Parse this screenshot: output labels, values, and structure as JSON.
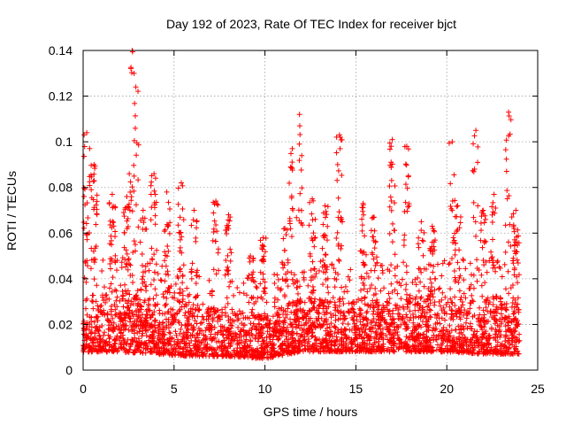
{
  "chart_data": {
    "type": "scatter",
    "title": "Day 192 of 2023, Rate Of TEC Index for receiver bjct",
    "xlabel": "GPS time / hours",
    "ylabel": "ROTI / TECUs",
    "xlim": [
      0,
      25
    ],
    "ylim": [
      0,
      0.14
    ],
    "x_ticks": [
      0,
      5,
      10,
      15,
      20,
      25
    ],
    "y_ticks": [
      0,
      0.02,
      0.04,
      0.06,
      0.08,
      0.1,
      0.12,
      0.14
    ],
    "x_tick_labels": [
      "0",
      "5",
      "10",
      "15",
      "20",
      "25"
    ],
    "y_tick_labels": [
      "0",
      "0.02",
      "0.04",
      "0.06",
      "0.08",
      "0.1",
      "0.12",
      "0.14"
    ],
    "grid": true,
    "marker": "+",
    "color": "#ff0000",
    "time_span_hours": [
      0,
      24
    ],
    "sampling": "dense per-satellite samples, ~0.5 min cadence",
    "baseline_envelope": [
      {
        "x": 0,
        "low": 0.008,
        "high": 0.032
      },
      {
        "x": 2,
        "low": 0.008,
        "high": 0.035
      },
      {
        "x": 4,
        "low": 0.007,
        "high": 0.03
      },
      {
        "x": 6,
        "low": 0.006,
        "high": 0.028
      },
      {
        "x": 8,
        "low": 0.006,
        "high": 0.027
      },
      {
        "x": 10,
        "low": 0.005,
        "high": 0.024
      },
      {
        "x": 12,
        "low": 0.008,
        "high": 0.032
      },
      {
        "x": 14,
        "low": 0.008,
        "high": 0.032
      },
      {
        "x": 16,
        "low": 0.008,
        "high": 0.03
      },
      {
        "x": 18,
        "low": 0.008,
        "high": 0.032
      },
      {
        "x": 20,
        "low": 0.008,
        "high": 0.032
      },
      {
        "x": 22,
        "low": 0.007,
        "high": 0.034
      },
      {
        "x": 24,
        "low": 0.007,
        "high": 0.032
      }
    ],
    "spikes": [
      {
        "x": 0.2,
        "peak": 0.104
      },
      {
        "x": 0.6,
        "peak": 0.09
      },
      {
        "x": 1.6,
        "peak": 0.077
      },
      {
        "x": 2.4,
        "peak": 0.076
      },
      {
        "x": 2.7,
        "peak": 0.14
      },
      {
        "x": 2.9,
        "peak": 0.124
      },
      {
        "x": 3.3,
        "peak": 0.07
      },
      {
        "x": 3.9,
        "peak": 0.086
      },
      {
        "x": 4.6,
        "peak": 0.078
      },
      {
        "x": 5.4,
        "peak": 0.082
      },
      {
        "x": 6.1,
        "peak": 0.07
      },
      {
        "x": 7.3,
        "peak": 0.074
      },
      {
        "x": 8.0,
        "peak": 0.068
      },
      {
        "x": 9.2,
        "peak": 0.05
      },
      {
        "x": 9.9,
        "peak": 0.058
      },
      {
        "x": 11.1,
        "peak": 0.062
      },
      {
        "x": 11.5,
        "peak": 0.097
      },
      {
        "x": 11.9,
        "peak": 0.112
      },
      {
        "x": 12.6,
        "peak": 0.075
      },
      {
        "x": 13.3,
        "peak": 0.072
      },
      {
        "x": 14.1,
        "peak": 0.103
      },
      {
        "x": 15.4,
        "peak": 0.073
      },
      {
        "x": 16.0,
        "peak": 0.067
      },
      {
        "x": 17.0,
        "peak": 0.101
      },
      {
        "x": 17.8,
        "peak": 0.098
      },
      {
        "x": 18.6,
        "peak": 0.065
      },
      {
        "x": 19.2,
        "peak": 0.063
      },
      {
        "x": 20.3,
        "peak": 0.1
      },
      {
        "x": 20.6,
        "peak": 0.072
      },
      {
        "x": 21.6,
        "peak": 0.105
      },
      {
        "x": 22.0,
        "peak": 0.07
      },
      {
        "x": 22.6,
        "peak": 0.077
      },
      {
        "x": 23.4,
        "peak": 0.113
      },
      {
        "x": 23.8,
        "peak": 0.07
      }
    ]
  }
}
